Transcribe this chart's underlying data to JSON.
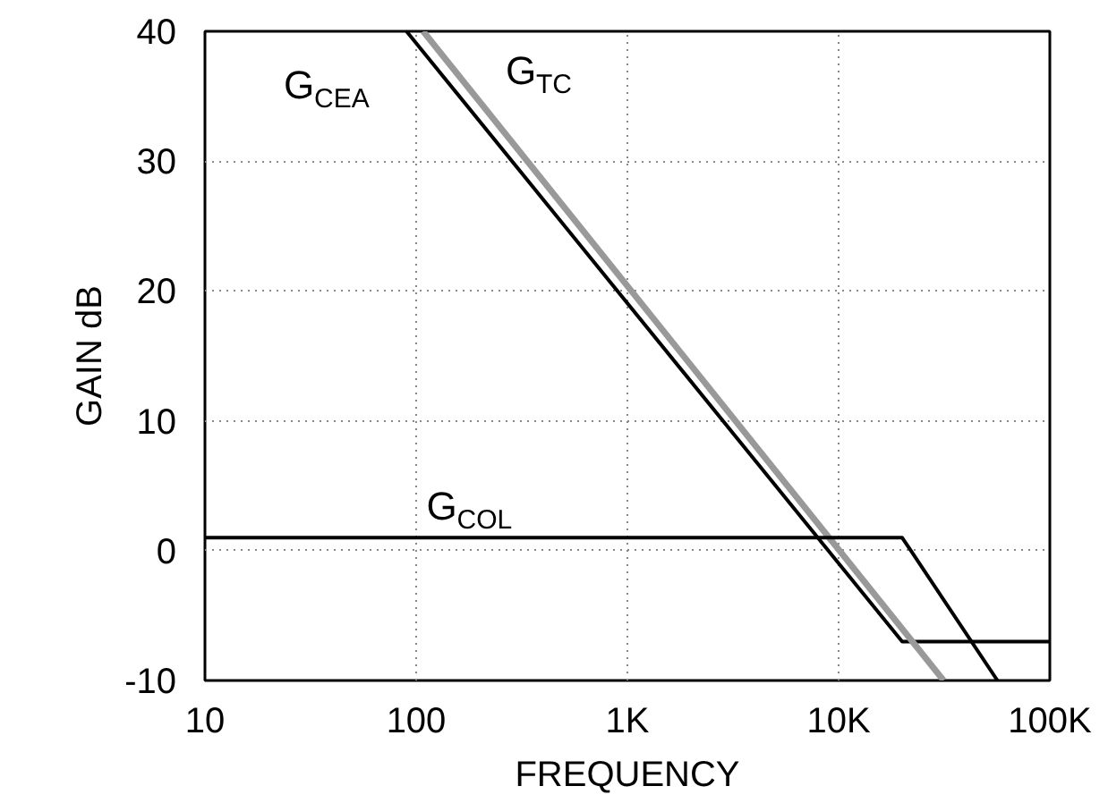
{
  "chart_data": {
    "type": "line",
    "xlabel": "FREQUENCY",
    "ylabel": "GAIN dB",
    "log": "x",
    "grid": true,
    "xlim": [
      10,
      100000
    ],
    "ylim": [
      -10,
      40
    ],
    "xticks": [
      10,
      100,
      {
        "value": 1000,
        "label": "1K"
      },
      {
        "value": 10000,
        "label": "10K"
      },
      {
        "value": 100000,
        "label": "100K"
      }
    ],
    "yticks": [
      -10,
      0,
      10,
      20,
      30,
      40
    ],
    "series": [
      {
        "name": "G$_{CEA}$",
        "color": "#000000",
        "x": [
          90,
          20000,
          100000
        ],
        "values": [
          40,
          -7,
          -7
        ]
      },
      {
        "name": "G$_{TC}$",
        "color": "#999999",
        "x": [
          108,
          31400
        ],
        "values": [
          40,
          -10
        ]
      },
      {
        "name": "G$_{COL}$",
        "color": "#000000",
        "x": [
          10,
          20000,
          56500
        ],
        "values": [
          1,
          1,
          -10
        ]
      }
    ]
  }
}
